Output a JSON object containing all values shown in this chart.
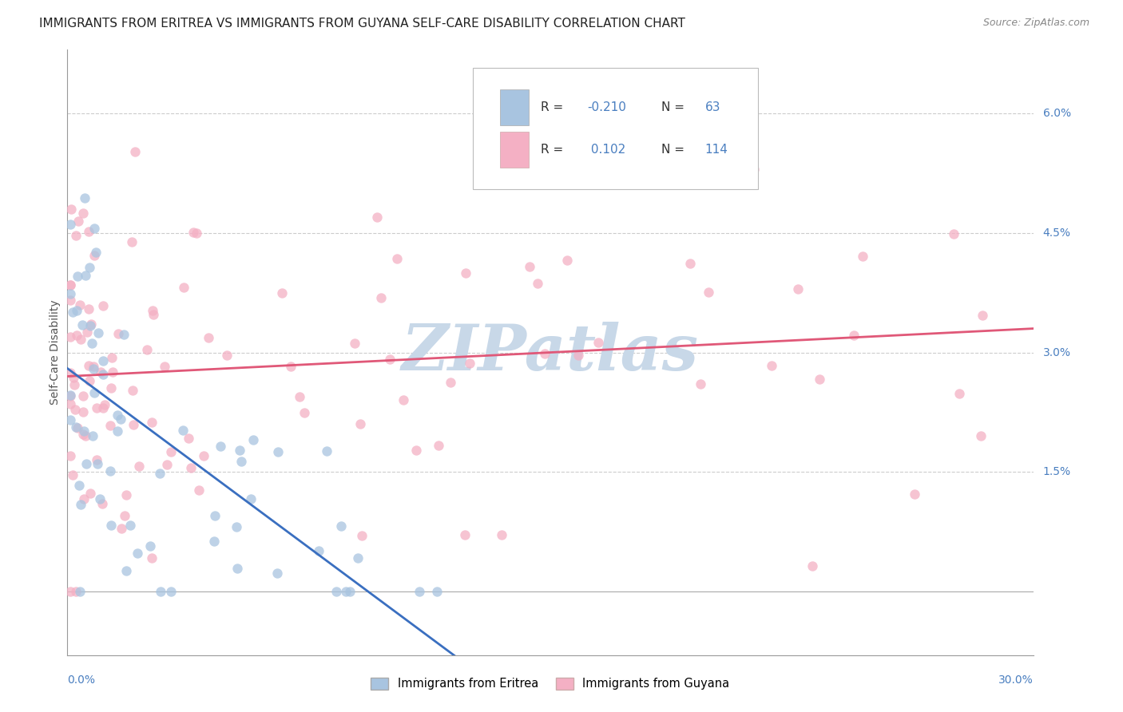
{
  "title": "IMMIGRANTS FROM ERITREA VS IMMIGRANTS FROM GUYANA SELF-CARE DISABILITY CORRELATION CHART",
  "source": "Source: ZipAtlas.com",
  "ylabel": "Self-Care Disability",
  "right_yticks": [
    "6.0%",
    "4.5%",
    "3.0%",
    "1.5%"
  ],
  "right_ytick_vals": [
    0.06,
    0.045,
    0.03,
    0.015
  ],
  "legend_eritrea": "Immigrants from Eritrea",
  "legend_guyana": "Immigrants from Guyana",
  "R_eritrea": "-0.210",
  "N_eritrea": "63",
  "R_guyana": "0.102",
  "N_guyana": "114",
  "color_eritrea": "#a8c4e0",
  "color_guyana": "#f4b0c4",
  "color_eritrea_line": "#3a6fc0",
  "color_guyana_line": "#e05878",
  "color_dashed": "#b8c8dc",
  "background_color": "#ffffff",
  "grid_color": "#cccccc",
  "watermark": "ZIPatlas",
  "watermark_color": "#c8d8e8",
  "xmin": 0.0,
  "xmax": 0.3,
  "ymin": -0.008,
  "ymax": 0.068,
  "title_fontsize": 11,
  "source_fontsize": 9,
  "scatter_size": 80
}
